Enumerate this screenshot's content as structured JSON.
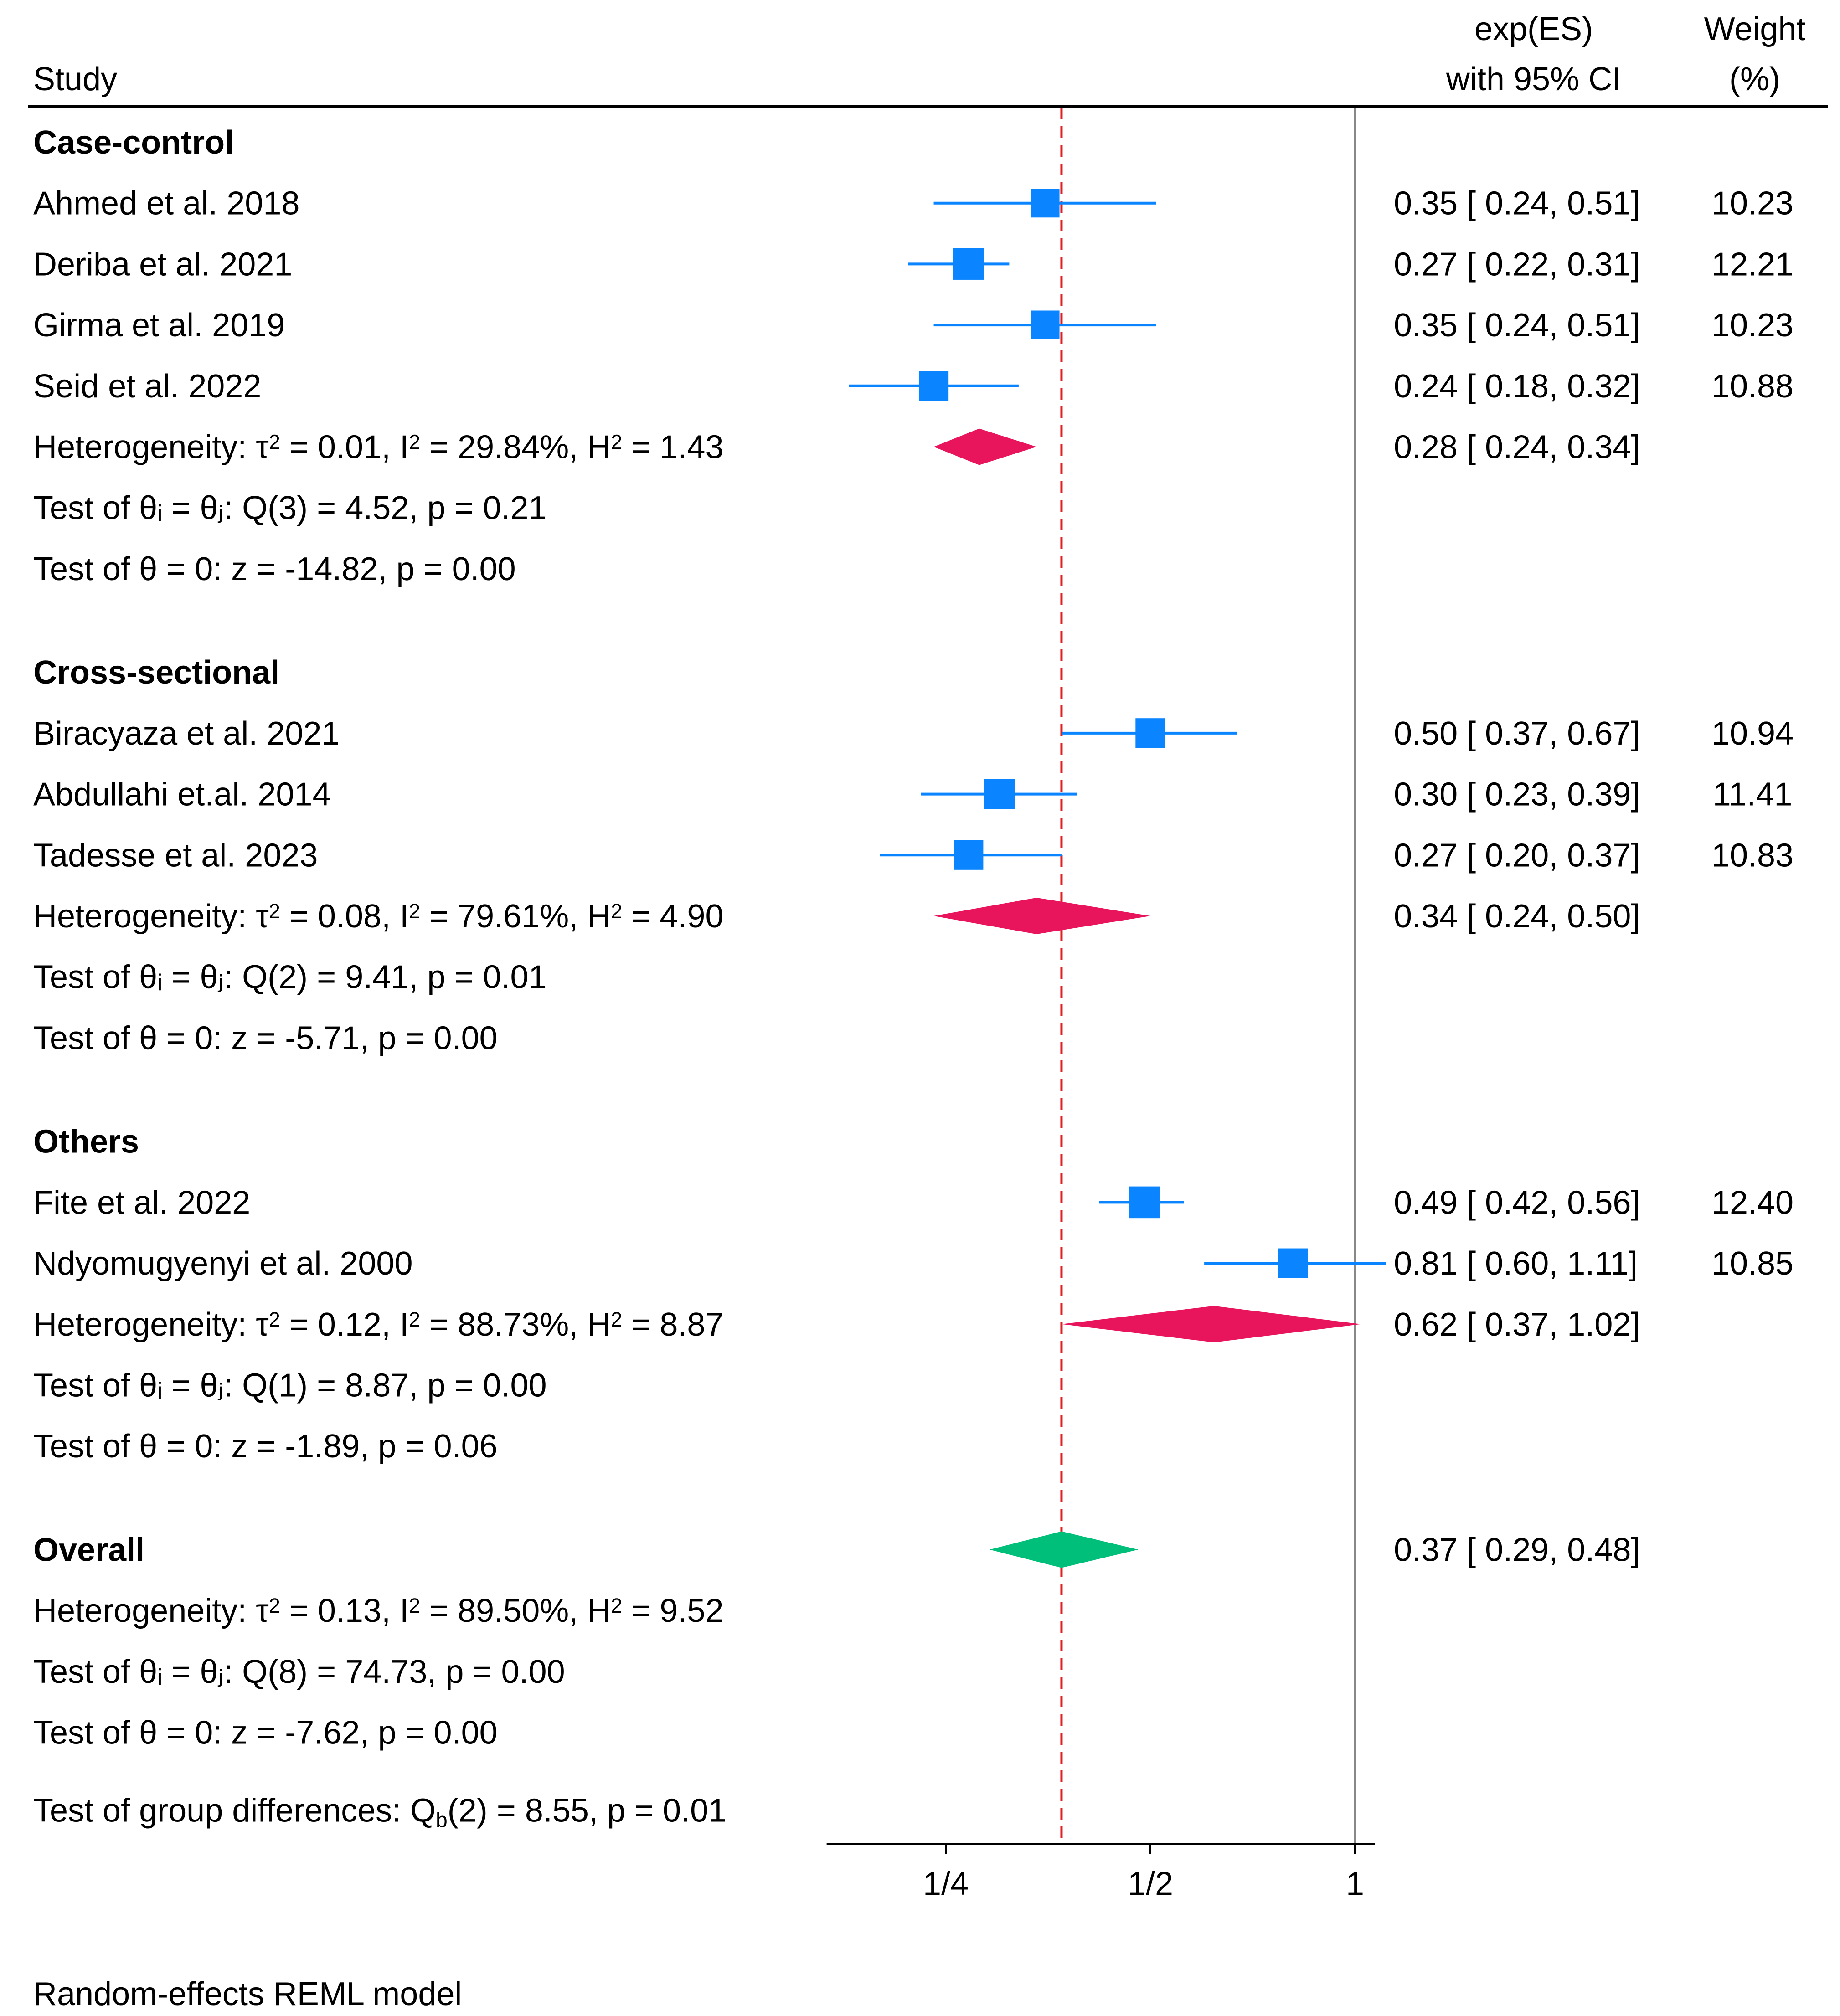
{
  "chart_data": {
    "type": "forest",
    "header": {
      "study": "Study",
      "es_line1": "exp(ES)",
      "es_line2": "with 95% CI",
      "weight_line1": "Weight",
      "weight_line2": "(%)"
    },
    "x_scale": "log",
    "xlim": [
      0.167,
      1.07
    ],
    "x_ticks": [
      {
        "value": 0.25,
        "label": "1/4"
      },
      {
        "value": 0.5,
        "label": "1/2"
      },
      {
        "value": 1,
        "label": "1"
      }
    ],
    "null_line": 1,
    "overall_line": 0.37,
    "colors": {
      "study": "#0a84ff",
      "subgroup": "#e8145c",
      "overall": "#00bf7a",
      "reference_dashed": "#e02020",
      "null_line": "#888888"
    },
    "groups": [
      {
        "name": "Case-control",
        "studies": [
          {
            "label": "Ahmed et al. 2018",
            "es": 0.35,
            "lo": 0.24,
            "hi": 0.51,
            "ci_text": "0.35 [ 0.24,  0.51]",
            "weight": "10.23"
          },
          {
            "label": "Deriba et al. 2021",
            "es": 0.27,
            "lo": 0.22,
            "hi": 0.31,
            "ci_text": "0.27 [ 0.22,  0.31]",
            "weight": "12.21"
          },
          {
            "label": "Girma et al. 2019",
            "es": 0.35,
            "lo": 0.24,
            "hi": 0.51,
            "ci_text": "0.35 [ 0.24,  0.51]",
            "weight": "10.23"
          },
          {
            "label": "Seid et al. 2022",
            "es": 0.24,
            "lo": 0.18,
            "hi": 0.32,
            "ci_text": "0.24 [ 0.18,  0.32]",
            "weight": "10.88"
          }
        ],
        "pooled": {
          "es": 0.28,
          "lo": 0.24,
          "hi": 0.34,
          "ci_text": "0.28 [ 0.24,  0.34]"
        },
        "heterogeneity": {
          "tau2": "0.01",
          "i2": "29.84%",
          "h2": "1.43"
        },
        "test_q": "Test of θᵢ = θⱼ: Q(3) = 4.52, p = 0.21",
        "test_z": "Test of θ = 0: z = -14.82, p = 0.00"
      },
      {
        "name": "Cross-sectional",
        "studies": [
          {
            "label": "Biracyaza et al. 2021",
            "es": 0.5,
            "lo": 0.37,
            "hi": 0.67,
            "ci_text": "0.50 [ 0.37,  0.67]",
            "weight": "10.94"
          },
          {
            "label": "Abdullahi et.al. 2014",
            "es": 0.3,
            "lo": 0.23,
            "hi": 0.39,
            "ci_text": "0.30 [ 0.23,  0.39]",
            "weight": "11.41"
          },
          {
            "label": "Tadesse et al. 2023",
            "es": 0.27,
            "lo": 0.2,
            "hi": 0.37,
            "ci_text": "0.27 [ 0.20,  0.37]",
            "weight": "10.83"
          }
        ],
        "pooled": {
          "es": 0.34,
          "lo": 0.24,
          "hi": 0.5,
          "ci_text": "0.34 [ 0.24,  0.50]"
        },
        "heterogeneity": {
          "tau2": "0.08",
          "i2": "79.61%",
          "h2": "4.90"
        },
        "test_q": "Test of θᵢ = θⱼ: Q(2) = 9.41, p = 0.01",
        "test_z": "Test of θ = 0: z = -5.71, p = 0.00"
      },
      {
        "name": "Others",
        "studies": [
          {
            "label": "Fite et al. 2022",
            "es": 0.49,
            "lo": 0.42,
            "hi": 0.56,
            "ci_text": "0.49 [ 0.42,  0.56]",
            "weight": "12.40"
          },
          {
            "label": "Ndyomugyenyi et al. 2000",
            "es": 0.81,
            "lo": 0.6,
            "hi": 1.11,
            "ci_text": "0.81 [ 0.60,  1.11]",
            "weight": "10.85"
          }
        ],
        "pooled": {
          "es": 0.62,
          "lo": 0.37,
          "hi": 1.02,
          "ci_text": "0.62 [ 0.37,  1.02]"
        },
        "heterogeneity": {
          "tau2": "0.12",
          "i2": "88.73%",
          "h2": "8.87"
        },
        "test_q": "Test of θᵢ = θⱼ: Q(1) = 8.87, p = 0.00",
        "test_z": "Test of θ = 0: z = -1.89, p = 0.06"
      }
    ],
    "overall": {
      "name": "Overall",
      "es": 0.37,
      "lo": 0.29,
      "hi": 0.48,
      "ci_text": "0.37 [ 0.29,  0.48]",
      "heterogeneity": {
        "tau2": "0.13",
        "i2": "89.50%",
        "h2": "9.52"
      },
      "test_q": "Test of θᵢ = θⱼ: Q(8) = 74.73, p = 0.00",
      "test_z": "Test of θ = 0: z = -7.62, p = 0.00"
    },
    "group_diff": {
      "prefix": "Test of group differences: Q",
      "sub": "b",
      "suffix": "(2) = 8.55, p = 0.01"
    },
    "footnote": "Random-effects REML model"
  }
}
